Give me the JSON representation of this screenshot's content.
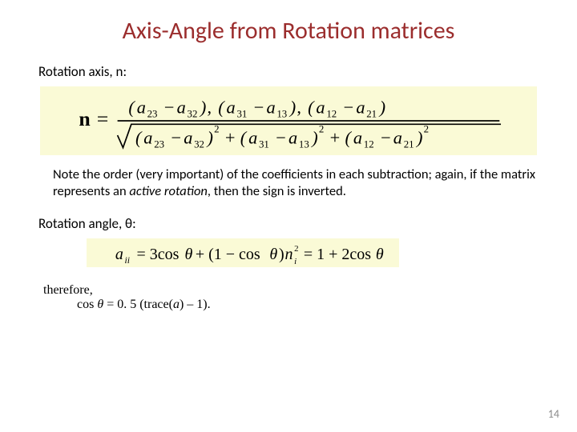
{
  "title": "Axis-Angle from Rotation matrices",
  "label_axis": "Rotation axis, n:",
  "note_html": "Note the order (very important) of the coefficients in each subtraction; again, if the matrix represents an <em>active rotation</em>, then the sign is inverted.",
  "label_angle": "Rotation angle, θ:",
  "therefore": "therefore,",
  "cosline": "cos θ = 0. 5 (trace(a) – 1).",
  "pagenum": "14",
  "colors": {
    "title": "#9b2d2d",
    "formula_bg": "#fafad6",
    "pagenum": "#8a8a8a",
    "text": "#000000",
    "background": "#ffffff"
  },
  "formula_n": {
    "lhs": "n",
    "numerator_terms": [
      {
        "a1": "a",
        "s1": "23",
        "a2": "a",
        "s2": "32"
      },
      {
        "a1": "a",
        "s1": "31",
        "a2": "a",
        "s2": "13"
      },
      {
        "a1": "a",
        "s1": "12",
        "a2": "a",
        "s2": "21"
      }
    ],
    "denominator_under_sqrt_terms": [
      {
        "a1": "a",
        "s1": "23",
        "a2": "a",
        "s2": "32",
        "pow": "2"
      },
      {
        "a1": "a",
        "s1": "31",
        "a2": "a",
        "s2": "13",
        "pow": "2"
      },
      {
        "a1": "a",
        "s1": "12",
        "a2": "a",
        "s2": "21",
        "pow": "2"
      }
    ]
  },
  "formula_theta": {
    "lhs_base": "a",
    "lhs_sub": "ii",
    "rhs": "= 3cosθ + (1 − cosθ)n  = 1 + 2cosθ",
    "n_sub": "i",
    "n_sup": "2"
  }
}
